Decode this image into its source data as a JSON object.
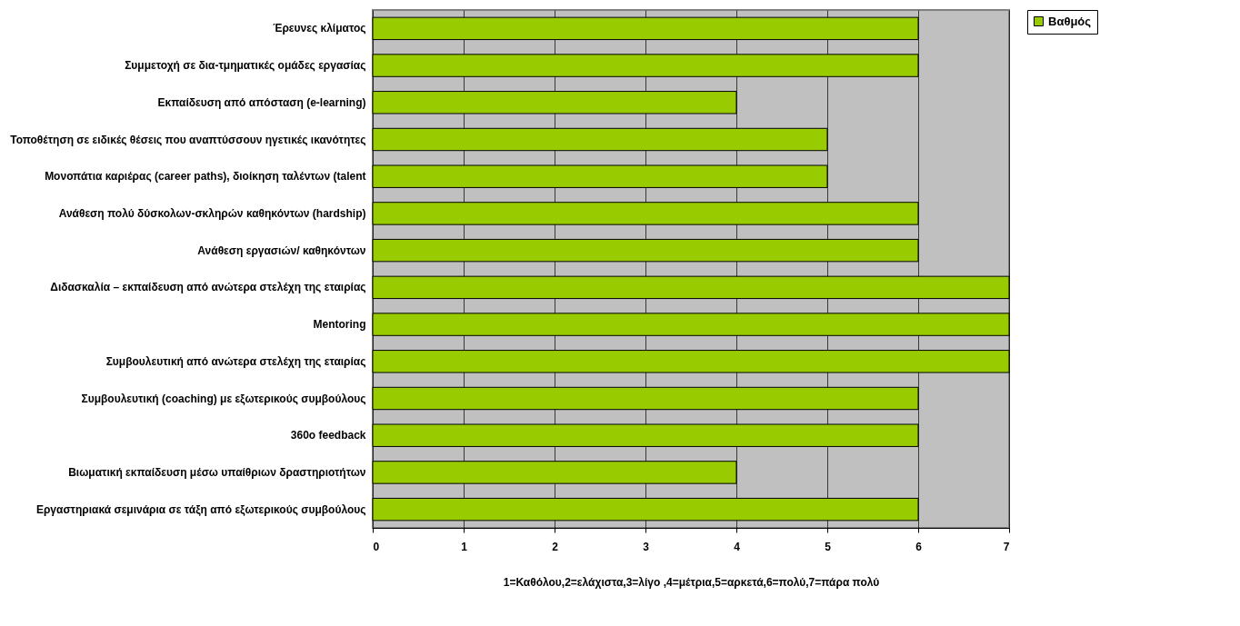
{
  "chart_data": {
    "type": "bar",
    "orientation": "horizontal",
    "xlabel": "1=Καθόλου,2=ελάχιστα,3=λίγο ,4=μέτρια,5=αρκετά,6=πολύ,7=πάρα πολύ",
    "categories": [
      "Έρευνες κλίματος",
      "Συμμετοχή σε δια-τμηματικές ομάδες εργασίας",
      "Εκπαίδευση από απόσταση (e-learning)",
      "Τοποθέτηση σε ειδικές θέσεις που αναπτύσσουν ηγετικές ικανότητες",
      "Μονοπάτια καριέρας (career paths), διοίκηση ταλέντων (talent",
      "Ανάθεση πολύ δύσκολων-σκληρών καθηκόντων (hardship)",
      "Ανάθεση εργασιών/ καθηκόντων",
      "Διδασκαλία – εκπαίδευση από ανώτερα στελέχη της εταιρίας",
      "Mentoring",
      "Συμβουλευτική από ανώτερα στελέχη της εταιρίας",
      "Συμβουλευτική (coaching) με εξωτερικούς συμβούλους",
      "360o feedback",
      "Βιωματική εκπαίδευση μέσω υπαίθριων δραστηριοτήτων",
      "Εργαστηριακά σεμινάρια σε τάξη από εξωτερικούς συμβούλους"
    ],
    "series": [
      {
        "name": "Βαθμός",
        "color": "#99cc00",
        "values": [
          6,
          6,
          4,
          5,
          5,
          6,
          6,
          7,
          7,
          7,
          6,
          6,
          4,
          6
        ]
      }
    ],
    "xlim": [
      0,
      7
    ],
    "xticks": [
      0,
      1,
      2,
      3,
      4,
      5,
      6,
      7
    ],
    "grid": "x",
    "legend": "right"
  }
}
